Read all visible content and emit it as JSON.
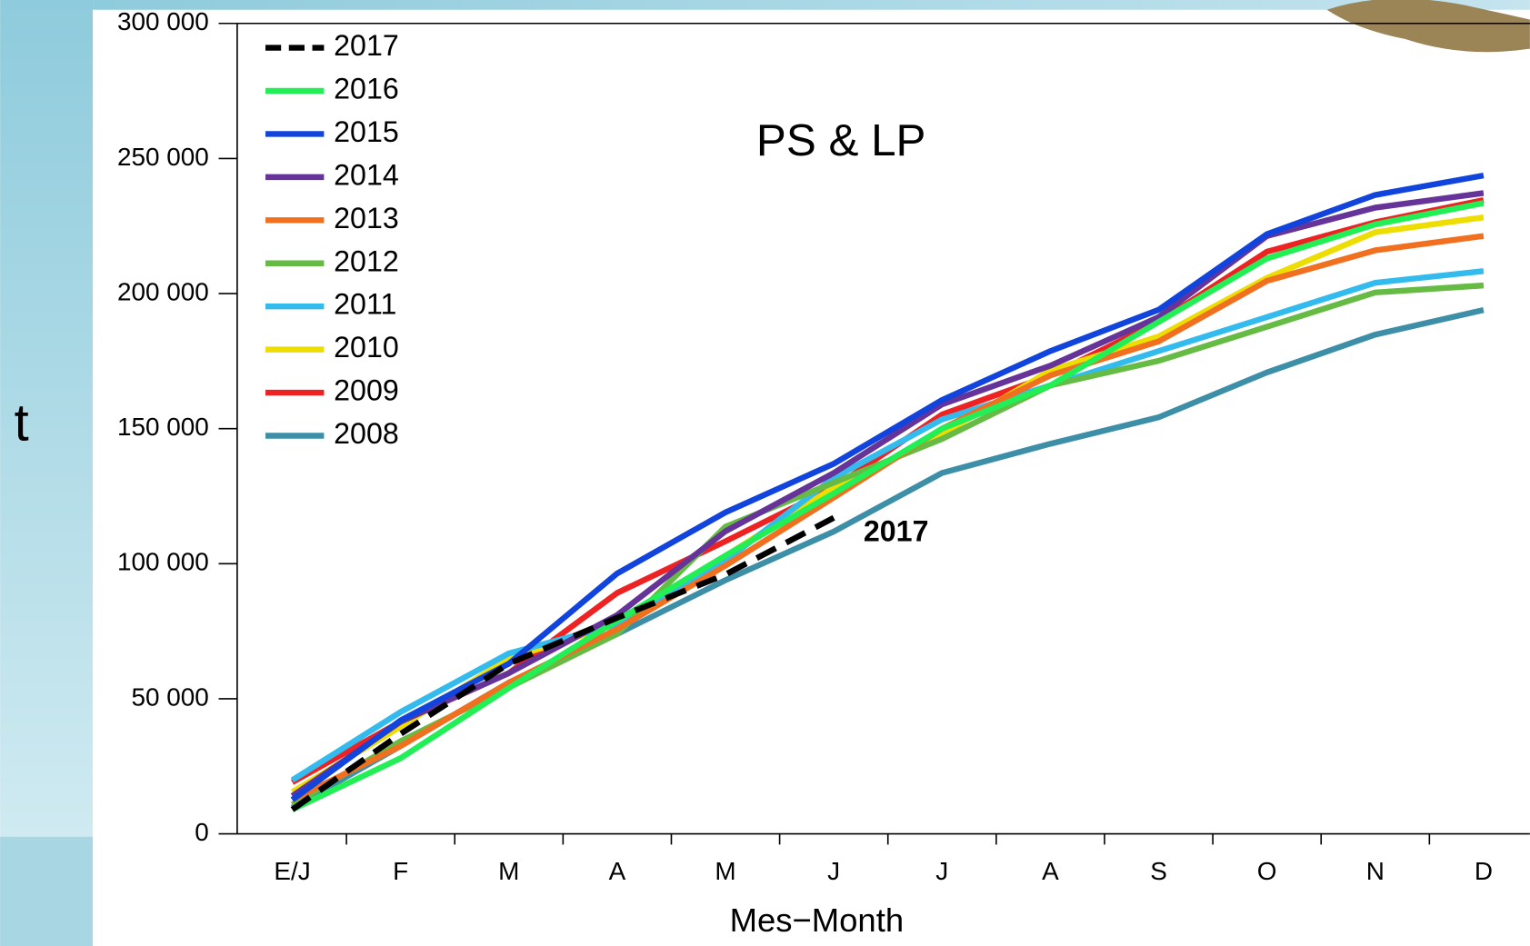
{
  "chart_data": {
    "type": "line",
    "title": "PS & LP",
    "annotation": "2017",
    "y_label": "t",
    "x_label": "Mes−Month",
    "categories": [
      "E/J",
      "F",
      "M",
      "A",
      "M",
      "J",
      "J",
      "A",
      "S",
      "O",
      "N",
      "D"
    ],
    "ylim": [
      0,
      300000
    ],
    "yticks": [
      0,
      {
        "value": 50000,
        "label": "50 000"
      },
      {
        "value": 100000,
        "label": "100 000"
      },
      {
        "value": 150000,
        "label": "150 000"
      },
      {
        "value": 200000,
        "label": "200 000"
      },
      {
        "value": 250000,
        "label": "250 000"
      },
      {
        "value": 300000,
        "label": "300 000"
      }
    ],
    "series": [
      {
        "name": "2017",
        "color": "#000000",
        "dashed": true,
        "values": [
          9000,
          37000,
          63000,
          80000,
          96000,
          117000,
          null,
          null,
          null,
          null,
          null,
          null
        ]
      },
      {
        "name": "2016",
        "color": "#22ee55",
        "values": [
          9000,
          28000,
          54000,
          79000,
          103000,
          126000,
          150000,
          166000,
          189500,
          213000,
          225600,
          233500
        ]
      },
      {
        "name": "2015",
        "color": "#1144dd",
        "values": [
          12600,
          42000,
          63000,
          96400,
          119000,
          137000,
          160600,
          178700,
          194000,
          222000,
          236500,
          243700
        ]
      },
      {
        "name": "2014",
        "color": "#663399",
        "values": [
          14000,
          41500,
          59500,
          81000,
          112000,
          133600,
          159000,
          173300,
          191300,
          221300,
          231800,
          237200
        ]
      },
      {
        "name": "2013",
        "color": "#f07020",
        "values": [
          12600,
          32500,
          56000,
          75800,
          99300,
          124500,
          150000,
          169700,
          182300,
          204700,
          216000,
          221300
        ]
      },
      {
        "name": "2012",
        "color": "#66bb44",
        "values": [
          10800,
          34300,
          54200,
          74000,
          113700,
          130000,
          146200,
          166000,
          175100,
          187700,
          200400,
          203000
        ]
      },
      {
        "name": "2011",
        "color": "#33bbee",
        "values": [
          19900,
          45100,
          66800,
          77600,
          101100,
          131800,
          153400,
          166000,
          178700,
          191300,
          204000,
          208300
        ]
      },
      {
        "name": "2010",
        "color": "#eedd00",
        "values": [
          15500,
          39700,
          65000,
          77600,
          102900,
          128200,
          148000,
          171500,
          184100,
          205800,
          222700,
          228200
        ]
      },
      {
        "name": "2009",
        "color": "#ee2222",
        "values": [
          19100,
          41500,
          59500,
          89200,
          108300,
          128200,
          155200,
          169700,
          189500,
          215500,
          226400,
          234600
        ]
      },
      {
        "name": "2008",
        "color": "#3d8fa8",
        "values": [
          9700,
          32500,
          56000,
          74000,
          93900,
          111900,
          133600,
          144400,
          154200,
          170800,
          184800,
          193900
        ]
      }
    ]
  }
}
